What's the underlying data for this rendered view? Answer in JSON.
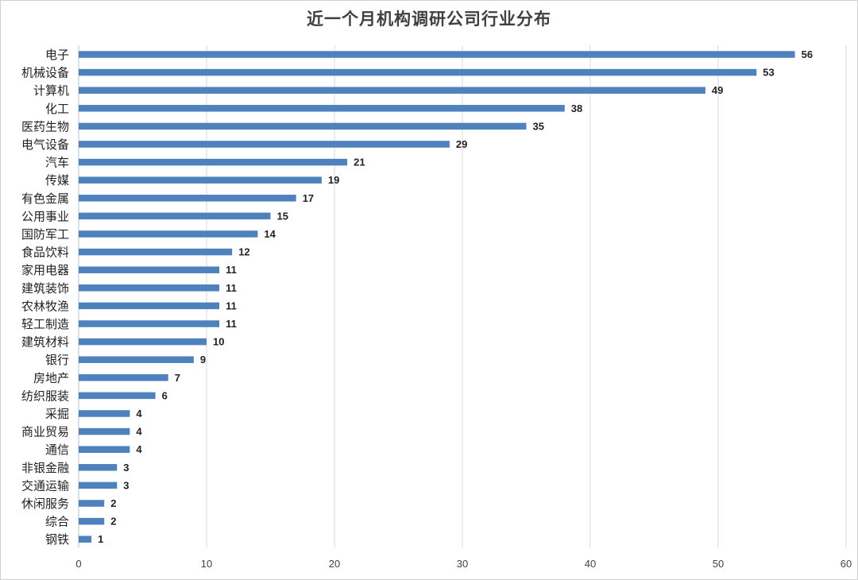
{
  "chart_data": {
    "type": "bar",
    "orientation": "horizontal",
    "title": "近一个月机构调研公司行业分布",
    "categories": [
      "电子",
      "机械设备",
      "计算机",
      "化工",
      "医药生物",
      "电气设备",
      "汽车",
      "传媒",
      "有色金属",
      "公用事业",
      "国防军工",
      "食品饮料",
      "家用电器",
      "建筑装饰",
      "农林牧渔",
      "轻工制造",
      "建筑材料",
      "银行",
      "房地产",
      "纺织服装",
      "采掘",
      "商业贸易",
      "通信",
      "非银金融",
      "交通运输",
      "休闲服务",
      "综合",
      "钢铁"
    ],
    "values": [
      56,
      53,
      49,
      38,
      35,
      29,
      21,
      19,
      17,
      15,
      14,
      12,
      11,
      11,
      11,
      11,
      10,
      9,
      7,
      6,
      4,
      4,
      4,
      3,
      3,
      2,
      2,
      1
    ],
    "xlim": [
      0,
      60
    ],
    "xticks": [
      0,
      10,
      20,
      30,
      40,
      50,
      60
    ],
    "grid": true,
    "bar_color": "#4F81BD",
    "grid_color": "#D9D9D9"
  }
}
